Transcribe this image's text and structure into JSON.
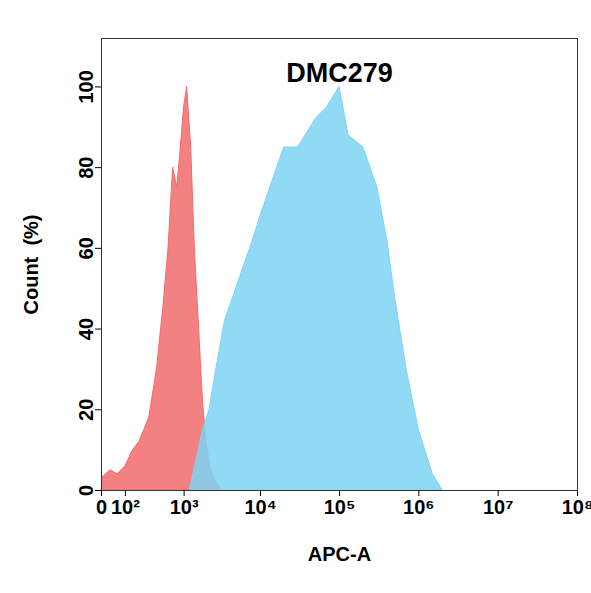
{
  "chart_data": {
    "type": "area",
    "title": "DMC279",
    "x_label": "APC-A",
    "y_label": "Count  (%)",
    "log": "x",
    "xlim": [
      0,
      100000000
    ],
    "xticks": [
      {
        "value": 0,
        "label": "0"
      },
      {
        "value": 100,
        "label": "10²"
      },
      {
        "value": 1000,
        "label": "10³"
      },
      {
        "value": 10000,
        "label": "10⁴"
      },
      {
        "value": 100000,
        "label": "10⁵"
      },
      {
        "value": 1000000,
        "label": "10⁶"
      },
      {
        "value": 10000000,
        "label": "10⁷"
      },
      {
        "value": 100000000,
        "label": "10⁸"
      }
    ],
    "ylim": [
      0,
      112
    ],
    "yticks": [
      0,
      20,
      40,
      60,
      80,
      100
    ],
    "series": [
      {
        "color": "#f26b6b",
        "x": [
          0,
          30,
          60,
          100,
          150,
          200,
          300,
          400,
          500,
          600,
          700,
          800,
          900,
          1000,
          1100,
          1250,
          1400,
          1600,
          1800,
          2000,
          2300,
          2700,
          3200
        ],
        "values": [
          3,
          5,
          4,
          6,
          10,
          12,
          18,
          30,
          45,
          60,
          80,
          75,
          85,
          95,
          100,
          85,
          60,
          40,
          22,
          12,
          5,
          2,
          0
        ]
      },
      {
        "color": "#7dd3f5",
        "x": [
          1200,
          1500,
          1800,
          2200,
          2700,
          3500,
          4500,
          6000,
          8000,
          10000,
          15000,
          20000,
          30000,
          50000,
          70000,
          100000,
          130000,
          200000,
          300000,
          400000,
          500000,
          700000,
          1000000,
          1500000,
          2000000
        ],
        "values": [
          0,
          8,
          15,
          20,
          30,
          42,
          48,
          55,
          62,
          68,
          78,
          85,
          85,
          92,
          95,
          100,
          88,
          85,
          75,
          62,
          48,
          30,
          15,
          4,
          0
        ]
      }
    ]
  }
}
